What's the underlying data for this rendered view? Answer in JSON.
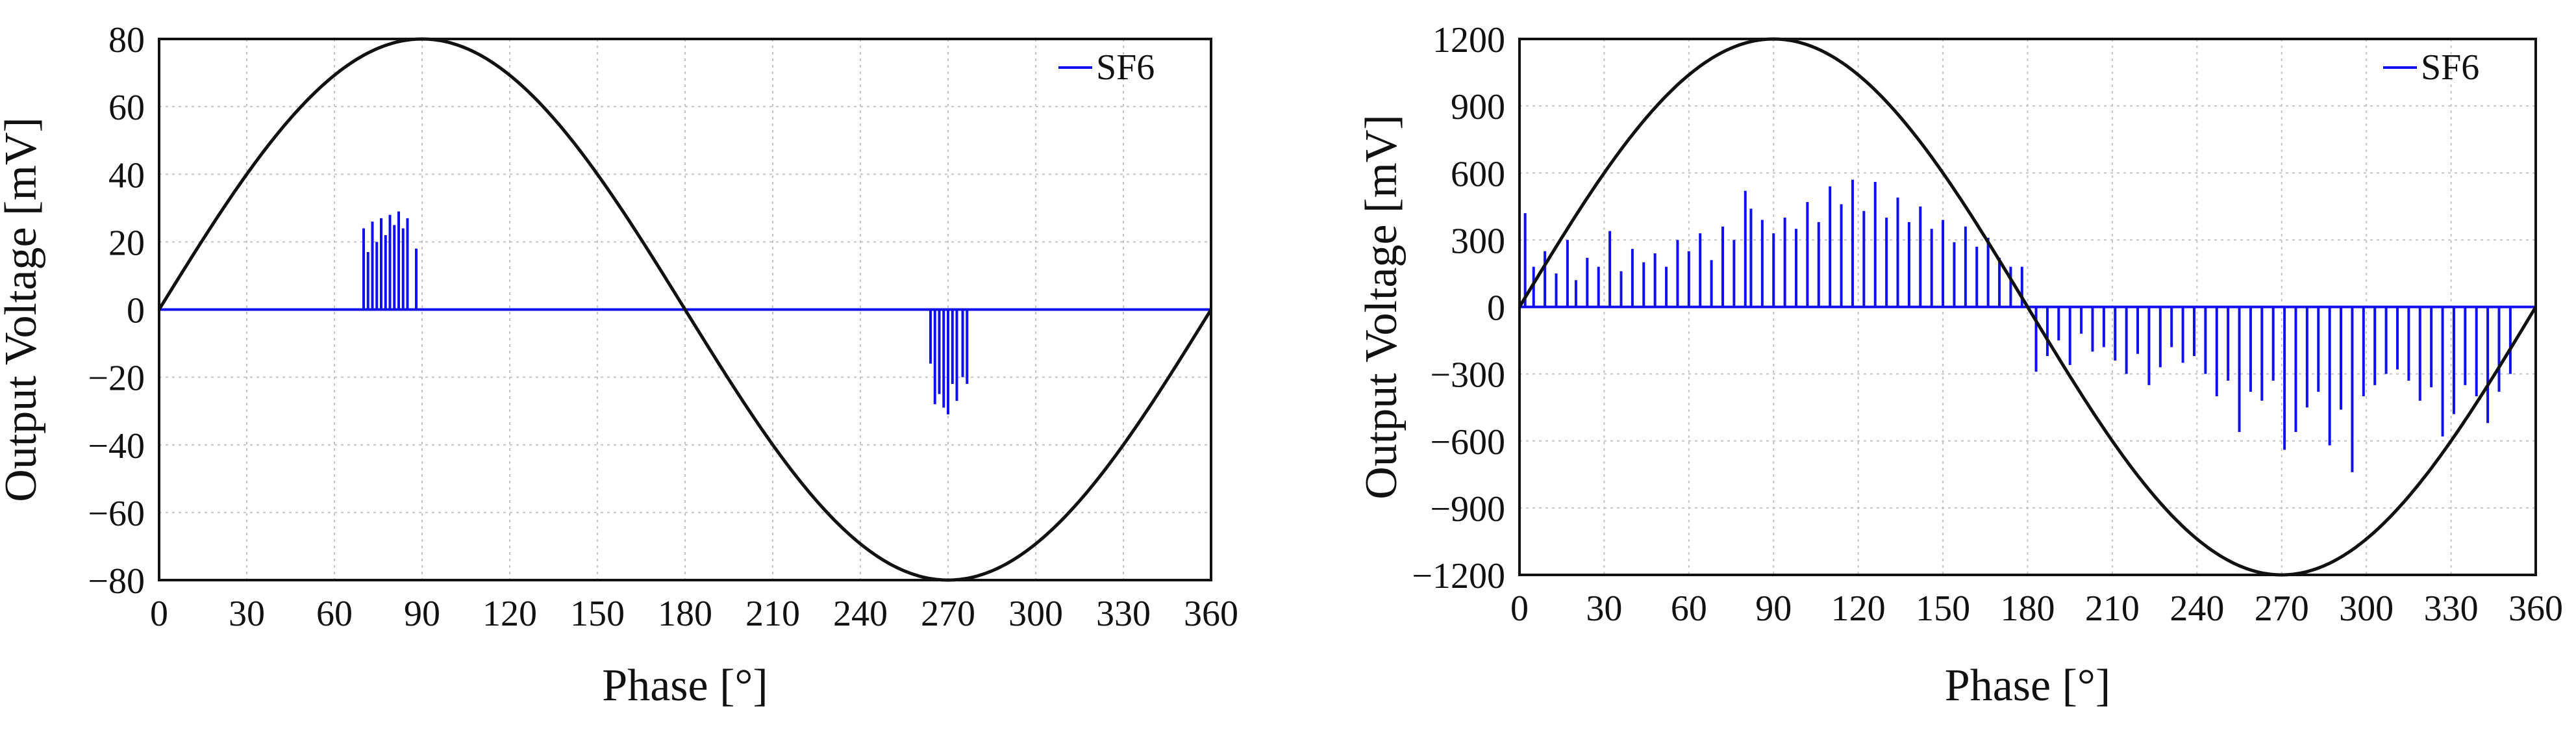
{
  "colors": {
    "series": "#1010ee",
    "reference": "#111111",
    "grid": "#c4c4c4",
    "frame": "#111111",
    "background": "#ffffff"
  },
  "chart_data": [
    {
      "type": "line",
      "title": "",
      "xlabel": "Phase [°]",
      "ylabel": "Output Voltage [mV]",
      "xlim": [
        0,
        360
      ],
      "ylim": [
        -80,
        80
      ],
      "xticks": [
        0,
        30,
        60,
        90,
        120,
        150,
        180,
        210,
        240,
        270,
        300,
        330,
        360
      ],
      "yticks": [
        -80,
        -60,
        -40,
        -20,
        0,
        20,
        40,
        60,
        80
      ],
      "grid": true,
      "legend": {
        "position": "top-right",
        "entries": [
          "SF6"
        ]
      },
      "series": [
        {
          "name": "SF6",
          "kind": "impulse",
          "x": [
            70,
            71.5,
            73,
            74.5,
            76,
            77.5,
            79,
            80.5,
            82,
            83.5,
            85,
            88,
            264,
            265.5,
            267,
            268.5,
            270,
            271.5,
            273,
            275,
            276.5
          ],
          "y": [
            24,
            17,
            26,
            20,
            27,
            22,
            28,
            25,
            29,
            24,
            27,
            18,
            -16,
            -28,
            -25,
            -29,
            -31,
            -22,
            -27,
            -20,
            -22
          ]
        },
        {
          "name": "reference sine",
          "kind": "sine",
          "amplitude": 80,
          "in_legend": false
        }
      ]
    },
    {
      "type": "line",
      "title": "",
      "xlabel": "Phase [°]",
      "ylabel": "Output Voltage [mV]",
      "xlim": [
        0,
        360
      ],
      "ylim": [
        -1200,
        1200
      ],
      "xticks": [
        0,
        30,
        60,
        90,
        120,
        150,
        180,
        210,
        240,
        270,
        300,
        330,
        360
      ],
      "yticks": [
        -1200,
        -900,
        -600,
        -300,
        0,
        300,
        600,
        900,
        1200
      ],
      "grid": true,
      "legend": {
        "position": "top-right",
        "entries": [
          "SF6"
        ]
      },
      "series": [
        {
          "name": "SF6",
          "kind": "impulse",
          "x": [
            2,
            5,
            9,
            13,
            17,
            20,
            24,
            28,
            32,
            36,
            40,
            44,
            48,
            52,
            56,
            60,
            64,
            68,
            72,
            76,
            80,
            82,
            86,
            90,
            94,
            98,
            102,
            106,
            110,
            114,
            118,
            122,
            126,
            130,
            134,
            138,
            142,
            146,
            150,
            154,
            158,
            162,
            166,
            170,
            174,
            178,
            183,
            187,
            191,
            195,
            199,
            203,
            207,
            211,
            215,
            219,
            223,
            227,
            231,
            235,
            239,
            243,
            247,
            251,
            255,
            259,
            263,
            267,
            271,
            275,
            279,
            283,
            287,
            291,
            295,
            299,
            303,
            307,
            311,
            315,
            319,
            323,
            327,
            331,
            335,
            339,
            343,
            347,
            351
          ],
          "y": [
            420,
            180,
            250,
            150,
            300,
            120,
            220,
            180,
            340,
            160,
            260,
            200,
            240,
            180,
            300,
            250,
            330,
            210,
            360,
            300,
            520,
            440,
            390,
            330,
            400,
            350,
            470,
            380,
            540,
            460,
            570,
            430,
            560,
            400,
            490,
            380,
            450,
            350,
            390,
            290,
            360,
            270,
            310,
            220,
            180,
            180,
            -290,
            -220,
            -150,
            -260,
            -120,
            -200,
            -180,
            -240,
            -300,
            -210,
            -350,
            -270,
            -180,
            -250,
            -220,
            -300,
            -400,
            -330,
            -560,
            -380,
            -420,
            -330,
            -640,
            -560,
            -450,
            -380,
            -620,
            -460,
            -740,
            -400,
            -350,
            -300,
            -280,
            -330,
            -420,
            -360,
            -580,
            -480,
            -350,
            -400,
            -520,
            -380,
            -300
          ],
          "peaks": [
            {
              "x": 120,
              "y": 570,
              "label": ""
            }
          ]
        },
        {
          "name": "reference sine",
          "kind": "sine",
          "amplitude": 1200,
          "in_legend": false
        }
      ]
    }
  ]
}
